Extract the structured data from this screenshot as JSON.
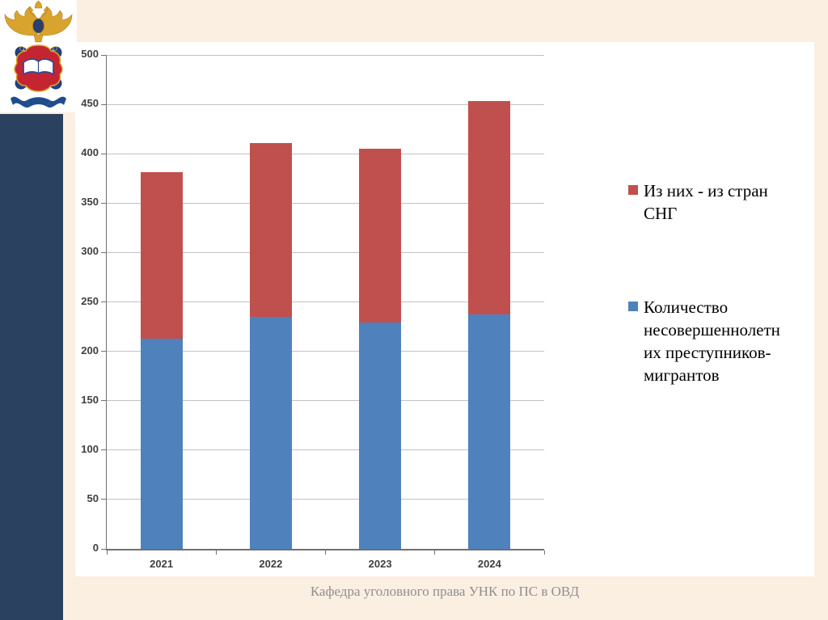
{
  "slide": {
    "footer": "Кафедра уголовного права УНК по ПС в ОВД",
    "colors": {
      "background": "#FBEFE2",
      "panel": "#FFFFFF",
      "sidebar": "#2A425F",
      "gridline": "#C2C2C2",
      "axis": "#707070",
      "axis_label": "#3F3F3F",
      "footer_text": "#8F8F8F"
    }
  },
  "chart_data": {
    "type": "bar",
    "stacked": true,
    "title": "",
    "categories": [
      "2021",
      "2022",
      "2023",
      "2024"
    ],
    "series": [
      {
        "name": "Количество несовершеннолетних преступников-мигрантов",
        "color": "#4F81BD",
        "values": [
          213,
          235,
          229,
          237
        ]
      },
      {
        "name": "Из них - из стран СНГ",
        "color": "#C0504D",
        "values": [
          168,
          176,
          176,
          216
        ]
      }
    ],
    "stack_totals": [
      381,
      411,
      405,
      453
    ],
    "xlabel": "",
    "ylabel": "",
    "ylim": [
      0,
      500
    ],
    "y_ticks": [
      0,
      50,
      100,
      150,
      200,
      250,
      300,
      350,
      400,
      450,
      500
    ],
    "grid": true,
    "legend_position": "right"
  },
  "legend": {
    "items": [
      {
        "label": "Из них - из стран СНГ",
        "color": "#C0504D"
      },
      {
        "label": "Количество несовершеннолетних преступников-мигрантов",
        "color": "#4F81BD"
      }
    ]
  }
}
